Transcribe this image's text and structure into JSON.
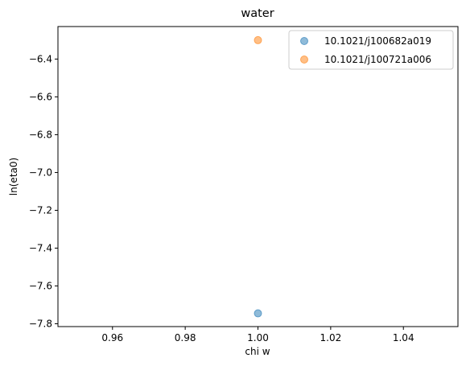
{
  "chart_data": {
    "type": "scatter",
    "title": "water",
    "xlabel": "chi w",
    "ylabel": "ln(eta0)",
    "xlim": [
      0.945,
      1.055
    ],
    "ylim": [
      -7.815,
      -6.228
    ],
    "xticks": [
      0.96,
      0.98,
      1.0,
      1.02,
      1.04
    ],
    "xtick_labels": [
      "0.96",
      "0.98",
      "1.00",
      "1.02",
      "1.04"
    ],
    "yticks": [
      -7.8,
      -7.6,
      -7.4,
      -7.2,
      -7.0,
      -6.8,
      -6.6,
      -6.4
    ],
    "ytick_labels": [
      "−7.8",
      "−7.6",
      "−7.4",
      "−7.2",
      "−7.0",
      "−6.8",
      "−6.6",
      "−6.4"
    ],
    "grid": false,
    "legend_position": "top-right",
    "series": [
      {
        "name": "10.1021/j100682a019",
        "color": "#1f77b4",
        "points": [
          {
            "x": 1.0,
            "y": -7.745
          }
        ]
      },
      {
        "name": "10.1021/j100721a006",
        "color": "#ff7f0e",
        "points": [
          {
            "x": 1.0,
            "y": -6.3
          }
        ]
      }
    ]
  }
}
